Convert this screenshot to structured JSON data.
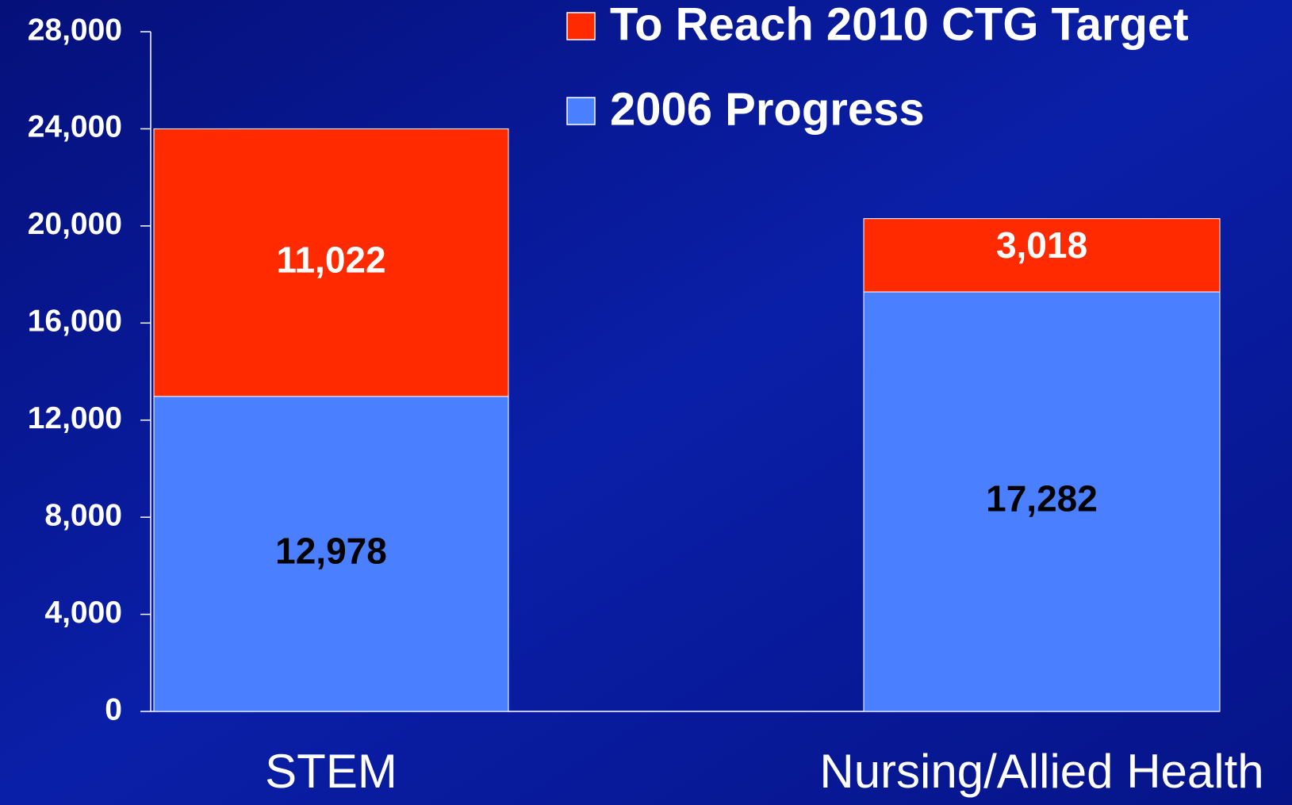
{
  "chart_data": {
    "type": "stacked_bar",
    "categories": [
      "STEM",
      "Nursing/Allied Health"
    ],
    "series": [
      {
        "name": "2006 Progress",
        "color": "#4a80ff",
        "values": [
          12978,
          17282
        ],
        "value_labels": [
          "12,978",
          "17,282"
        ]
      },
      {
        "name": "To Reach 2010 CTG Target",
        "color": "#ff2a00",
        "values": [
          11022,
          3018
        ],
        "value_labels": [
          "11,022",
          "3,018"
        ]
      }
    ],
    "ylim": [
      0,
      28000
    ],
    "yticks": [
      0,
      {
        "value": 4000,
        "label": "4,000"
      },
      {
        "value": 8000,
        "label": "8,000"
      },
      {
        "value": 12000,
        "label": "12,000"
      },
      {
        "value": 16000,
        "label": "16,000"
      },
      {
        "value": 20000,
        "label": "20,000"
      },
      {
        "value": 24000,
        "label": "24,000"
      },
      {
        "value": 28000,
        "label": "28,000"
      }
    ],
    "legend": "top-right",
    "grid": false
  }
}
